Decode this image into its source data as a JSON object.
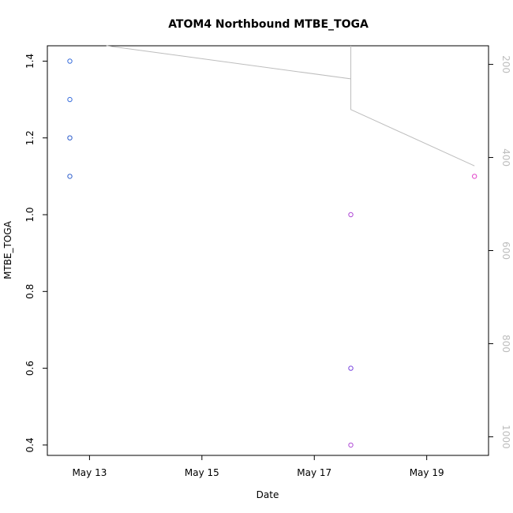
{
  "chart_data": {
    "type": "scatter",
    "title": "ATOM4 Northbound MTBE_TOGA",
    "xlabel": "Date",
    "ylabel": "MTBE_TOGA",
    "x_ticks": [
      "May 13",
      "May 15",
      "May 17",
      "May 19"
    ],
    "y_ticks": [
      "0.4",
      "0.6",
      "0.8",
      "1.0",
      "1.2",
      "1.4"
    ],
    "secondary_y_ticks": [
      "200",
      "400",
      "600",
      "800",
      "1000"
    ],
    "xlim_days": [
      12.25,
      20.1
    ],
    "ylim": [
      0.373,
      1.44
    ],
    "secondary_ylim_reversed": [
      1040,
      160
    ],
    "grid": false,
    "points": [
      {
        "day": 12.65,
        "value": 1.4,
        "color": "#3a6fdc"
      },
      {
        "day": 12.65,
        "value": 1.3,
        "color": "#3a6fdc"
      },
      {
        "day": 12.65,
        "value": 1.2,
        "color": "#2f5fcc"
      },
      {
        "day": 12.65,
        "value": 1.1,
        "color": "#2f5fcc"
      },
      {
        "day": 17.65,
        "value": 1.0,
        "color": "#b04ad6"
      },
      {
        "day": 17.65,
        "value": 0.6,
        "color": "#7a46e0"
      },
      {
        "day": 17.65,
        "value": 0.4,
        "color": "#b04ad6"
      },
      {
        "day": 19.85,
        "value": 1.1,
        "color": "#e040c8"
      }
    ],
    "secondary_line": {
      "color": "#bdbdbd",
      "points": [
        {
          "day": 13.3,
          "value": 160
        },
        {
          "day": 17.65,
          "value": 231
        },
        {
          "day": 17.65,
          "value": 160
        },
        {
          "day": 17.65,
          "value": 297
        },
        {
          "day": 19.85,
          "value": 418
        }
      ]
    }
  }
}
